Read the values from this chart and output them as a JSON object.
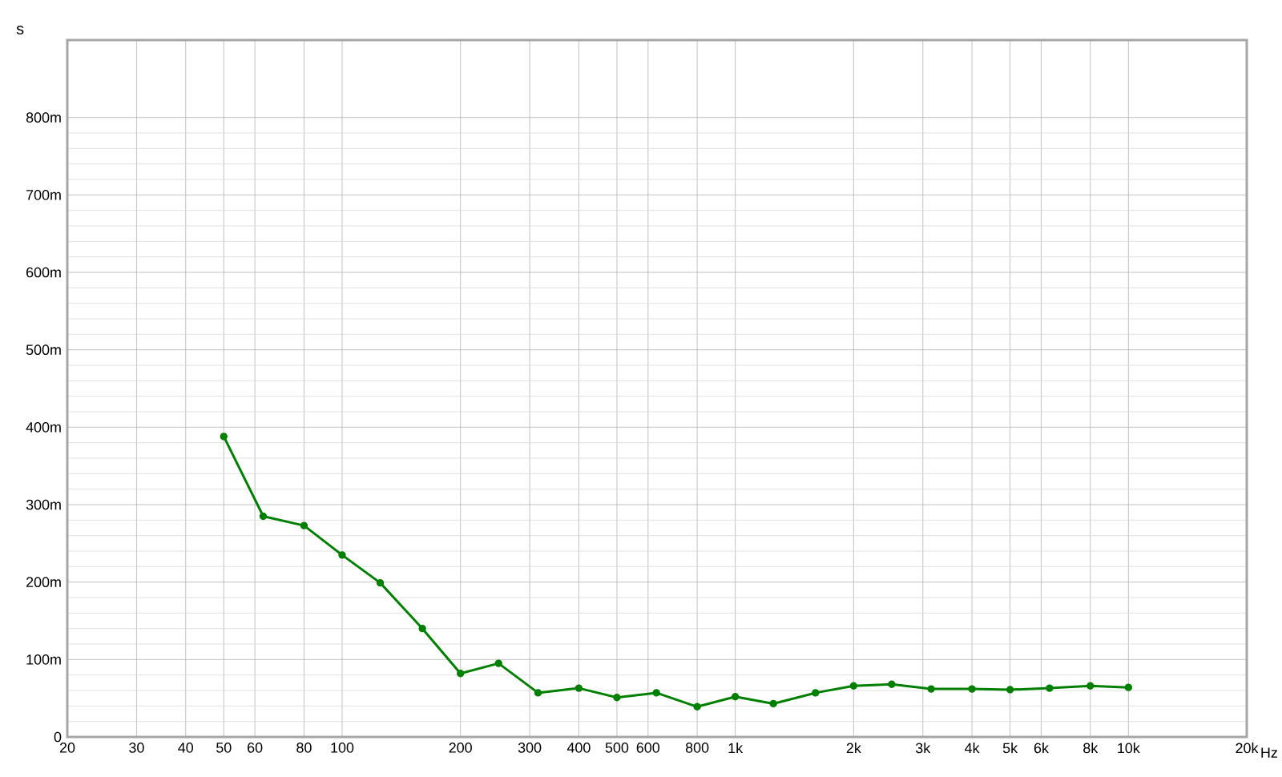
{
  "chart_data": {
    "type": "line",
    "ylabel": "s",
    "xlabel": "Hz",
    "log": "x",
    "grid": true,
    "marker": "circle",
    "line_style": "solid",
    "x": [
      50,
      63,
      80,
      100,
      125,
      160,
      200,
      250,
      315,
      400,
      500,
      630,
      800,
      1000,
      1250,
      1600,
      2000,
      2500,
      3150,
      4000,
      5000,
      6300,
      8000,
      10000
    ],
    "series": [
      {
        "color": "#008000",
        "values": [
          388,
          285,
          273,
          235,
          199,
          140,
          82,
          95,
          57,
          63,
          51,
          57,
          39,
          52,
          43,
          57,
          66,
          68,
          62,
          62,
          61,
          63,
          66,
          64
        ]
      }
    ],
    "xlim": [
      20,
      20000
    ],
    "xticks": [
      20,
      30,
      40,
      50,
      60,
      80,
      100,
      200,
      300,
      400,
      500,
      600,
      800,
      {
        "value": 1000,
        "label": "1k"
      },
      {
        "value": 2000,
        "label": "2k"
      },
      {
        "value": 3000,
        "label": "3k"
      },
      {
        "value": 4000,
        "label": "4k"
      },
      {
        "value": 5000,
        "label": "5k"
      },
      {
        "value": 6000,
        "label": "6k"
      },
      {
        "value": 8000,
        "label": "8k"
      },
      {
        "value": 10000,
        "label": "10k"
      },
      {
        "value": 20000,
        "label": "20k"
      }
    ],
    "ylim": [
      0,
      900
    ],
    "yticks": [
      0,
      {
        "value": 100,
        "label": "100m"
      },
      {
        "value": 200,
        "label": "200m"
      },
      {
        "value": 300,
        "label": "300m"
      },
      {
        "value": 400,
        "label": "400m"
      },
      {
        "value": 500,
        "label": "500m"
      },
      {
        "value": 600,
        "label": "600m"
      },
      {
        "value": 700,
        "label": "700m"
      },
      {
        "value": 800,
        "label": "800m"
      }
    ]
  }
}
